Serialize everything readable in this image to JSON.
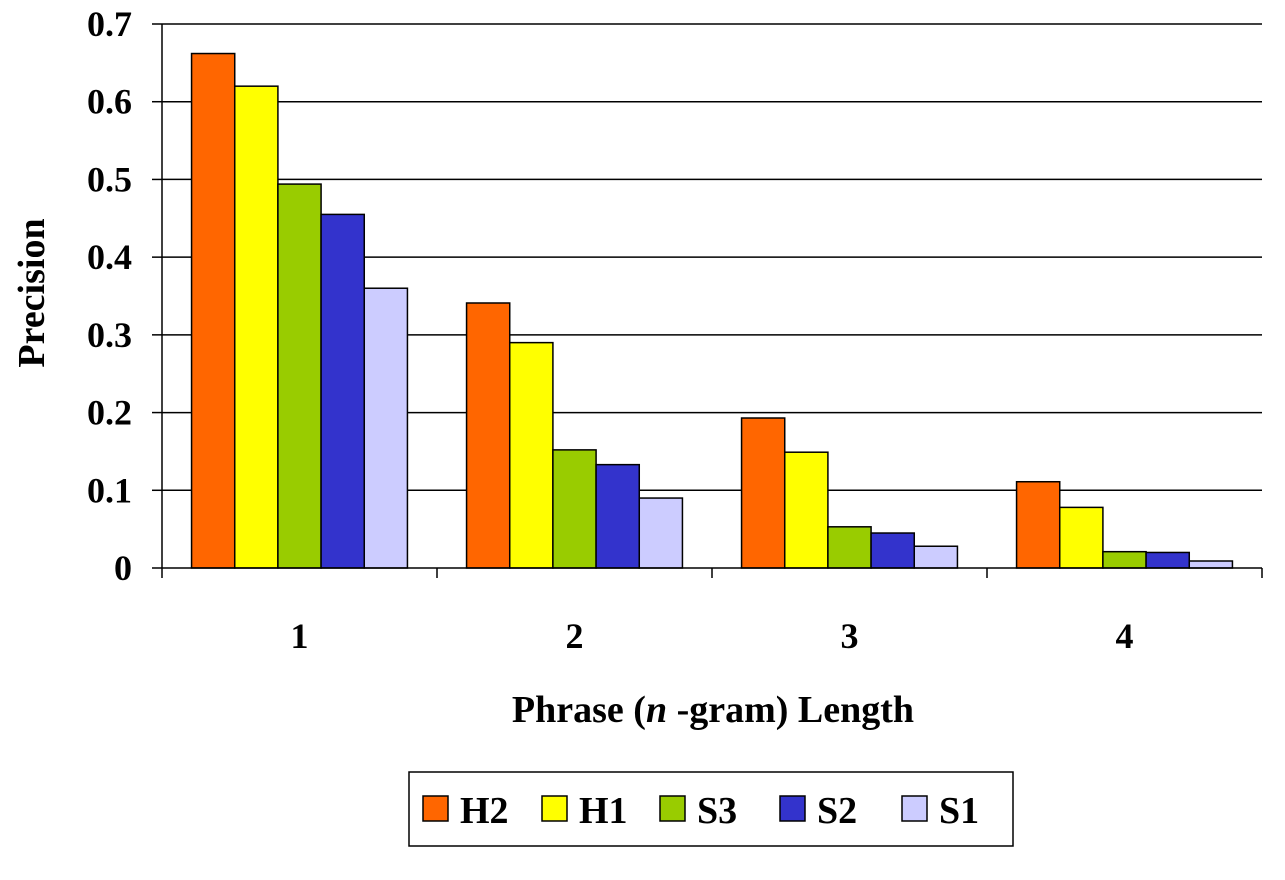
{
  "chart_data": {
    "type": "bar",
    "categories": [
      "1",
      "2",
      "3",
      "4"
    ],
    "series": [
      {
        "name": "H2",
        "color": "#FF6600",
        "values": [
          0.662,
          0.341,
          0.193,
          0.111
        ]
      },
      {
        "name": "H1",
        "color": "#FFFF00",
        "values": [
          0.62,
          0.29,
          0.149,
          0.078
        ]
      },
      {
        "name": "S3",
        "color": "#99CC00",
        "values": [
          0.494,
          0.152,
          0.053,
          0.021
        ]
      },
      {
        "name": "S2",
        "color": "#3333CC",
        "values": [
          0.455,
          0.133,
          0.045,
          0.02
        ]
      },
      {
        "name": "S1",
        "color": "#CCCCFF",
        "values": [
          0.36,
          0.09,
          0.028,
          0.009
        ]
      }
    ],
    "xlabel_parts": [
      "Phrase (",
      "n",
      " -gram) Length"
    ],
    "ylabel": "Precision",
    "ylim": [
      0,
      0.7
    ],
    "yticks": [
      "0",
      "0.1",
      "0.2",
      "0.3",
      "0.4",
      "0.5",
      "0.6",
      "0.7"
    ],
    "grid": true,
    "legend_position": "bottom"
  }
}
